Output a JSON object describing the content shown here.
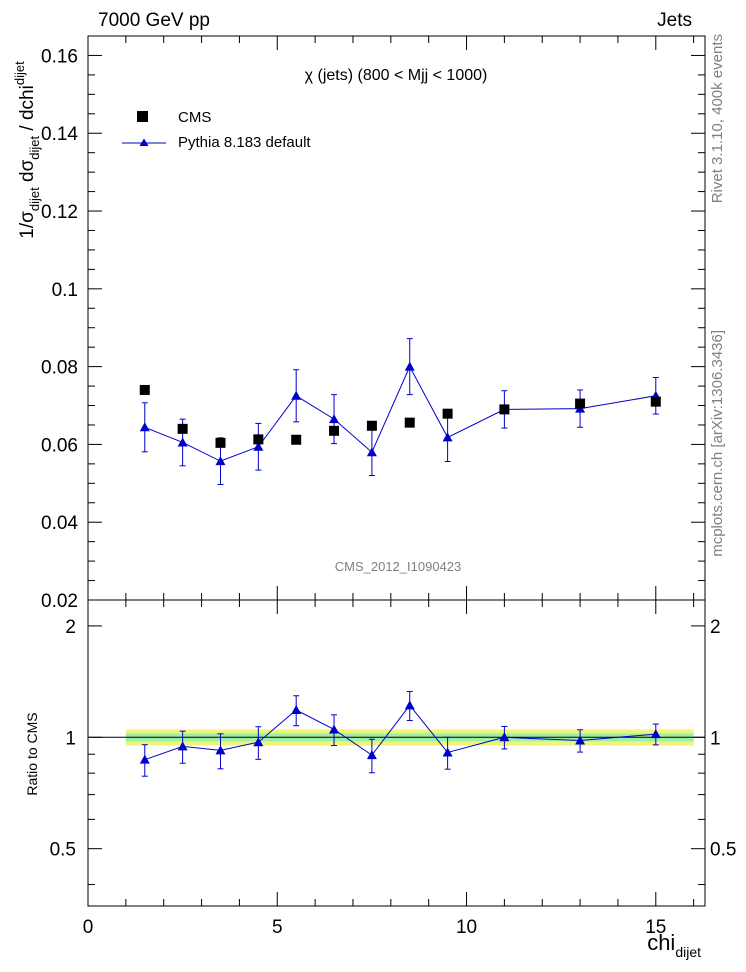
{
  "header": {
    "left": "7000 GeV pp",
    "right": "Jets"
  },
  "side_labels": {
    "rivet": "Rivet 3.1.10,  400k events",
    "mcplots": "mcplots.cern.ch [arXiv:1306.3436]"
  },
  "chart_data": [
    {
      "type": "scatter",
      "title": "χ (jets) (800 < Mjj < 1000)",
      "watermark": "CMS_2012_I1090423",
      "ylabel": {
        "pre": "1/σ",
        "s1": "dijet",
        "mid": " dσ",
        "s2": "dijet",
        "post": " / dchi",
        "s3": "dijet"
      },
      "xlim": [
        0,
        16.3
      ],
      "ylim": [
        0.02,
        0.165
      ],
      "yticks": [
        "0.02",
        "0.04",
        "0.06",
        "0.08",
        "0.1",
        "0.12",
        "0.14",
        "0.16"
      ],
      "legend_position": "top-left",
      "series": [
        {
          "name": "CMS",
          "color": "#000000",
          "marker": "square",
          "x": [
            1.5,
            2.5,
            3.5,
            4.5,
            5.5,
            6.5,
            7.5,
            8.5,
            9.5,
            11,
            13,
            15
          ],
          "y": [
            0.074,
            0.064,
            0.0604,
            0.0613,
            0.0612,
            0.0635,
            0.0648,
            0.0656,
            0.0679,
            0.069,
            0.0705,
            0.071
          ]
        },
        {
          "name": "Pythia 8.183 default",
          "color": "#0000cc",
          "marker": "triangle",
          "line": true,
          "x": [
            1.5,
            2.5,
            3.5,
            4.5,
            5.5,
            6.5,
            7.5,
            8.5,
            9.5,
            11,
            13,
            15
          ],
          "y": [
            0.0644,
            0.0605,
            0.0557,
            0.0594,
            0.0725,
            0.0665,
            0.058,
            0.08,
            0.0618,
            0.069,
            0.0692,
            0.0725
          ],
          "yerr": [
            0.0063,
            0.006,
            0.006,
            0.006,
            0.0067,
            0.0063,
            0.006,
            0.0072,
            0.0062,
            0.0048,
            0.0048,
            0.0047
          ]
        }
      ]
    },
    {
      "type": "scatter",
      "ylabel": "Ratio to CMS",
      "xlabel": {
        "main": "chi",
        "sub": "dijet"
      },
      "xlim": [
        0,
        16.3
      ],
      "ylim": [
        0.35,
        2.35
      ],
      "yticks": [
        "0.5",
        "1",
        "2"
      ],
      "xticks": [
        "0",
        "5",
        "10",
        "15"
      ],
      "reference_band": {
        "x": [
          1,
          16
        ],
        "inner": [
          0.975,
          1.025
        ],
        "outer": [
          0.95,
          1.05
        ]
      },
      "series": [
        {
          "name": "Pythia 8.183 default",
          "color": "#0000cc",
          "marker": "triangle",
          "line": true,
          "x": [
            1.5,
            2.5,
            3.5,
            4.5,
            5.5,
            6.5,
            7.5,
            8.5,
            9.5,
            11,
            13,
            15
          ],
          "y": [
            0.87,
            0.945,
            0.922,
            0.97,
            1.185,
            1.05,
            0.895,
            1.22,
            0.91,
            1.0,
            0.98,
            1.02
          ],
          "yerr": [
            0.085,
            0.094,
            0.1,
            0.098,
            0.11,
            0.1,
            0.093,
            0.11,
            0.09,
            0.07,
            0.068,
            0.066
          ]
        }
      ]
    }
  ]
}
